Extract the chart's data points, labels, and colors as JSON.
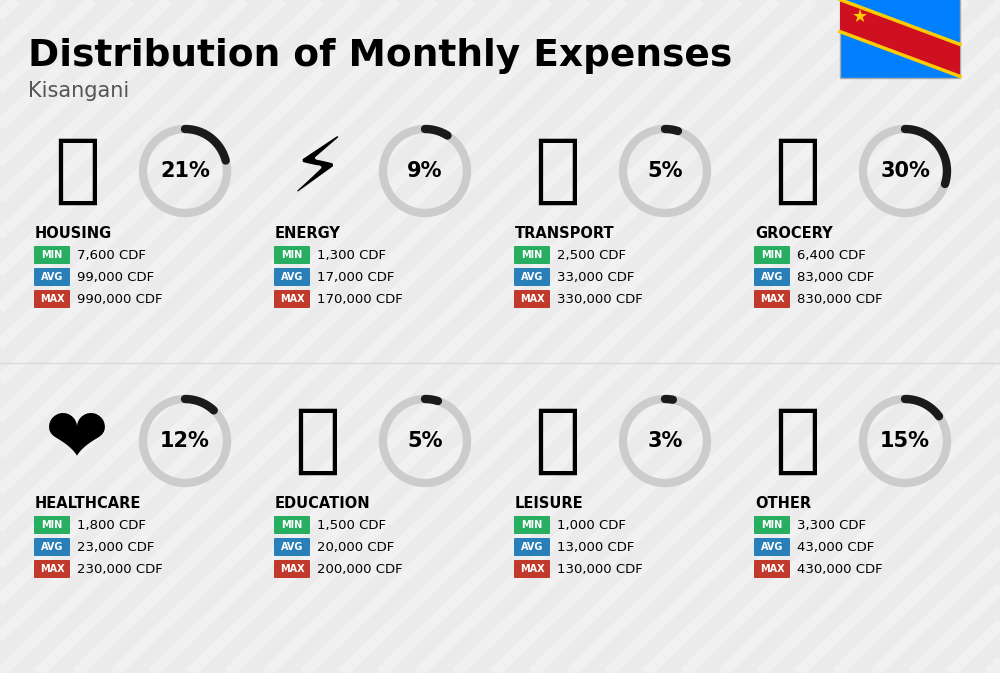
{
  "title": "Distribution of Monthly Expenses",
  "subtitle": "Kisangani",
  "background_color": "#ebebeb",
  "categories": [
    {
      "name": "HOUSING",
      "pct": 21,
      "icon": "🏗",
      "min": "7,600 CDF",
      "avg": "99,000 CDF",
      "max": "990,000 CDF",
      "col": 0,
      "row": 0
    },
    {
      "name": "ENERGY",
      "pct": 9,
      "icon": "⚡",
      "min": "1,300 CDF",
      "avg": "17,000 CDF",
      "max": "170,000 CDF",
      "col": 1,
      "row": 0
    },
    {
      "name": "TRANSPORT",
      "pct": 5,
      "icon": "🚌",
      "min": "2,500 CDF",
      "avg": "33,000 CDF",
      "max": "330,000 CDF",
      "col": 2,
      "row": 0
    },
    {
      "name": "GROCERY",
      "pct": 30,
      "icon": "🛒",
      "min": "6,400 CDF",
      "avg": "83,000 CDF",
      "max": "830,000 CDF",
      "col": 3,
      "row": 0
    },
    {
      "name": "HEALTHCARE",
      "pct": 12,
      "icon": "❤️",
      "min": "1,800 CDF",
      "avg": "23,000 CDF",
      "max": "230,000 CDF",
      "col": 0,
      "row": 1
    },
    {
      "name": "EDUCATION",
      "pct": 5,
      "icon": "🎓",
      "min": "1,500 CDF",
      "avg": "20,000 CDF",
      "max": "200,000 CDF",
      "col": 1,
      "row": 1
    },
    {
      "name": "LEISURE",
      "pct": 3,
      "icon": "🛒",
      "min": "1,000 CDF",
      "avg": "13,000 CDF",
      "max": "130,000 CDF",
      "col": 2,
      "row": 1
    },
    {
      "name": "OTHER",
      "pct": 15,
      "icon": "💰",
      "min": "3,300 CDF",
      "avg": "43,000 CDF",
      "max": "430,000 CDF",
      "col": 3,
      "row": 1
    }
  ],
  "color_min": "#27ae60",
  "color_avg": "#2980b9",
  "color_max": "#c0392b",
  "donut_active": "#1a1a1a",
  "donut_inactive": "#cccccc",
  "pct_fontsize": 15,
  "cat_fontsize": 10.5,
  "badge_fontsize": 7,
  "value_fontsize": 9.5,
  "stripe_color": "#ffffff",
  "stripe_alpha": 0.35,
  "stripe_linewidth": 8
}
